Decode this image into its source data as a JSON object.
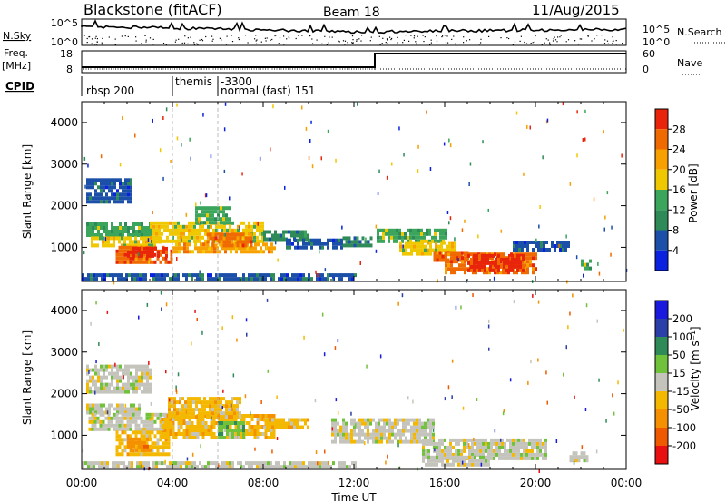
{
  "header": {
    "station": "Blackstone (fitACF)",
    "beam": "Beam 18",
    "date": "11/Aug/2015"
  },
  "strip_nsky": {
    "left_label": "N.Sky",
    "right_label": "N.Search",
    "tick_top": "10^5",
    "tick_bottom": "10^0",
    "right_tick_top": "10^5",
    "right_tick_bottom": "10^0"
  },
  "strip_freq": {
    "label_line1": "Freq.",
    "label_line2": "[MHz]",
    "right_label": "Nave",
    "tick_top": "18",
    "tick_bottom": "8",
    "right_tick_top": "60",
    "right_tick_bottom": "0"
  },
  "strip_cpid": {
    "label": "CPID",
    "segments": [
      {
        "start_hour": 0,
        "text": "rbsp 200"
      },
      {
        "start_hour": 4,
        "text": "themis"
      },
      {
        "start_hour": 6,
        "text": "-3300"
      },
      {
        "start_hour": 6,
        "text": "normal (fast) 151"
      }
    ]
  },
  "colors": {
    "power_scale": [
      "#0a22e0",
      "#1c4fa8",
      "#2e8b57",
      "#3aa55b",
      "#f0c800",
      "#f7a000",
      "#ef6a00",
      "#e8250a"
    ],
    "velocity_scale": [
      "#e81010",
      "#ef5a00",
      "#f59000",
      "#f5b800",
      "#c4c4bc",
      "#6fc23a",
      "#2e8b57",
      "#2b3fa8",
      "#1a1adf"
    ]
  },
  "time_axis": {
    "label": "Time UT",
    "ticks": [
      "00:00",
      "04:00",
      "08:00",
      "12:00",
      "16:00",
      "20:00",
      "00:00"
    ]
  },
  "chart_data": [
    {
      "type": "heatmap",
      "name": "power",
      "ylabel": "Slant Range [km]",
      "xlim": [
        0,
        24
      ],
      "ylim": [
        180,
        4500
      ],
      "yticks": [
        1000,
        2000,
        3000,
        4000
      ],
      "colorbar_label": "Power [dB]",
      "colorbar_ticks": [
        "4",
        "8",
        "12",
        "16",
        "20",
        "24",
        "28"
      ],
      "colorbar_range": [
        0,
        32
      ],
      "regions": [
        {
          "t0": 0.2,
          "t1": 2.2,
          "r0": 2050,
          "r1": 2650,
          "level": 1
        },
        {
          "t0": 0.2,
          "t1": 3.0,
          "r0": 1250,
          "r1": 1550,
          "level": 3
        },
        {
          "t0": 0.4,
          "t1": 3.5,
          "r0": 1000,
          "r1": 1250,
          "level": 4
        },
        {
          "t0": 1.5,
          "t1": 4.0,
          "r0": 600,
          "r1": 1000,
          "level": 6
        },
        {
          "t0": 2.0,
          "t1": 3.8,
          "r0": 750,
          "r1": 950,
          "level": 7
        },
        {
          "t0": 3.0,
          "t1": 8.0,
          "r0": 1100,
          "r1": 1600,
          "level": 4
        },
        {
          "t0": 5.0,
          "t1": 6.5,
          "r0": 1550,
          "r1": 1950,
          "level": 3
        },
        {
          "t0": 4.0,
          "t1": 8.5,
          "r0": 850,
          "r1": 1100,
          "level": 5
        },
        {
          "t0": 5.5,
          "t1": 7.5,
          "r0": 1000,
          "r1": 1300,
          "level": 6
        },
        {
          "t0": 8.0,
          "t1": 10.0,
          "r0": 1150,
          "r1": 1400,
          "level": 2
        },
        {
          "t0": 9.0,
          "t1": 11.5,
          "r0": 950,
          "r1": 1150,
          "level": 1
        },
        {
          "t0": 11.5,
          "t1": 12.8,
          "r0": 1000,
          "r1": 1200,
          "level": 2
        },
        {
          "t0": 13.0,
          "t1": 16.0,
          "r0": 1100,
          "r1": 1400,
          "level": 3
        },
        {
          "t0": 14.0,
          "t1": 16.5,
          "r0": 800,
          "r1": 1100,
          "level": 4
        },
        {
          "t0": 15.5,
          "t1": 17.0,
          "r0": 650,
          "r1": 900,
          "level": 6
        },
        {
          "t0": 16.0,
          "t1": 20.0,
          "r0": 350,
          "r1": 850,
          "level": 6
        },
        {
          "t0": 17.0,
          "t1": 19.5,
          "r0": 400,
          "r1": 750,
          "level": 7
        },
        {
          "t0": 19.0,
          "t1": 21.5,
          "r0": 900,
          "r1": 1150,
          "level": 1
        },
        {
          "t0": 0.0,
          "t1": 12.0,
          "r0": 200,
          "r1": 320,
          "level": 1
        },
        {
          "t0": 22.0,
          "t1": 22.4,
          "r0": 450,
          "r1": 700,
          "level": 3
        }
      ]
    },
    {
      "type": "heatmap",
      "name": "velocity",
      "ylabel": "Slant Range [km]",
      "xlim": [
        0,
        24
      ],
      "ylim": [
        180,
        4500
      ],
      "yticks": [
        1000,
        2000,
        3000,
        4000
      ],
      "colorbar_label": "Velocity [m s⁻¹]",
      "colorbar_ticks": [
        "-200",
        "-100",
        "-50",
        "-15",
        "15",
        "50",
        "100",
        "200"
      ],
      "colorbar_range": [
        -250,
        250
      ],
      "regions": [
        {
          "t0": 0.2,
          "t1": 2.5,
          "r0": 1500,
          "r1": 1750,
          "level": 4
        },
        {
          "t0": 0.3,
          "t1": 4.0,
          "r0": 1100,
          "r1": 1450,
          "level": 4
        },
        {
          "t0": 1.5,
          "t1": 3.8,
          "r0": 500,
          "r1": 1100,
          "level": 3
        },
        {
          "t0": 2.0,
          "t1": 3.0,
          "r0": 600,
          "r1": 900,
          "level": 2
        },
        {
          "t0": 3.5,
          "t1": 8.5,
          "r0": 900,
          "r1": 1450,
          "level": 3
        },
        {
          "t0": 3.8,
          "t1": 7.0,
          "r0": 1400,
          "r1": 1900,
          "level": 3
        },
        {
          "t0": 0.2,
          "t1": 3.0,
          "r0": 2000,
          "r1": 2650,
          "level": 4
        },
        {
          "t0": 8.0,
          "t1": 10.0,
          "r0": 1150,
          "r1": 1400,
          "level": 3
        },
        {
          "t0": 11.0,
          "t1": 15.5,
          "r0": 800,
          "r1": 1350,
          "level": 4
        },
        {
          "t0": 15.0,
          "t1": 20.5,
          "r0": 400,
          "r1": 900,
          "level": 4
        },
        {
          "t0": 15.0,
          "t1": 18.0,
          "r0": 250,
          "r1": 450,
          "level": 4
        },
        {
          "t0": 0.0,
          "t1": 12.0,
          "r0": 200,
          "r1": 320,
          "level": 4
        },
        {
          "t0": 6.0,
          "t1": 7.2,
          "r0": 900,
          "r1": 1300,
          "level": 5
        },
        {
          "t0": 21.5,
          "t1": 22.3,
          "r0": 350,
          "r1": 600,
          "level": 4
        }
      ]
    }
  ]
}
